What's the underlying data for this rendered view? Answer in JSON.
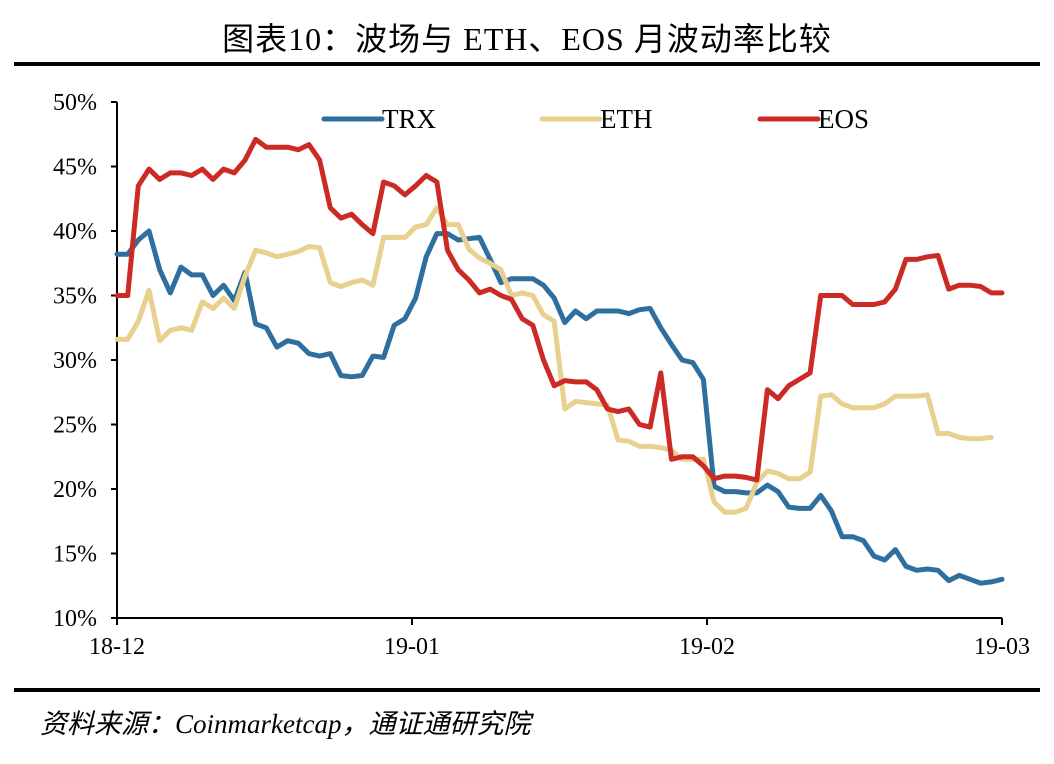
{
  "title": "图表10：波场与 ETH、EOS 月波动率比较",
  "source": "资料来源：Coinmarketcap，通证通研究院",
  "chart_data": {
    "type": "line",
    "title": "图表10：波场与 ETH、EOS 月波动率比较",
    "xlabel": "",
    "ylabel": "",
    "x_ticks": [
      "18-12",
      "19-01",
      "19-02",
      "19-03"
    ],
    "y_ticks": [
      "10%",
      "15%",
      "20%",
      "25%",
      "30%",
      "35%",
      "40%",
      "45%",
      "50%"
    ],
    "ylim": [
      10,
      50
    ],
    "y_unit": "%",
    "grid": false,
    "legend_position": "top",
    "series": [
      {
        "name": "TRX",
        "color": "#2f6f9f",
        "points": [
          [
            0,
            38.2
          ],
          [
            1,
            38.2
          ],
          [
            2,
            39.3
          ],
          [
            3,
            40.0
          ],
          [
            4,
            37.0
          ],
          [
            5,
            35.2
          ],
          [
            6,
            37.2
          ],
          [
            7,
            36.6
          ],
          [
            8,
            36.6
          ],
          [
            9,
            35.0
          ],
          [
            10,
            35.8
          ],
          [
            11,
            34.6
          ],
          [
            12,
            36.8
          ],
          [
            13,
            32.8
          ],
          [
            14,
            32.5
          ],
          [
            15,
            31.0
          ],
          [
            16,
            31.5
          ],
          [
            17,
            31.3
          ],
          [
            18,
            30.5
          ],
          [
            19,
            30.3
          ],
          [
            20,
            30.5
          ],
          [
            21,
            28.8
          ],
          [
            22,
            28.7
          ],
          [
            23,
            28.8
          ],
          [
            24,
            30.3
          ],
          [
            25,
            30.2
          ],
          [
            26,
            32.7
          ],
          [
            27,
            33.2
          ],
          [
            28,
            34.8
          ],
          [
            29,
            38.0
          ],
          [
            30,
            39.8
          ],
          [
            31,
            39.8
          ],
          [
            32,
            39.3
          ],
          [
            33,
            39.4
          ],
          [
            34,
            39.5
          ],
          [
            35,
            37.8
          ],
          [
            36,
            36.0
          ],
          [
            37,
            36.3
          ],
          [
            38,
            36.3
          ],
          [
            39,
            36.3
          ],
          [
            40,
            35.8
          ],
          [
            41,
            34.8
          ],
          [
            42,
            32.9
          ],
          [
            43,
            33.8
          ],
          [
            44,
            33.2
          ],
          [
            45,
            33.8
          ],
          [
            46,
            33.8
          ],
          [
            47,
            33.8
          ],
          [
            48,
            33.6
          ],
          [
            49,
            33.9
          ],
          [
            50,
            34.0
          ],
          [
            51,
            32.5
          ],
          [
            52,
            31.2
          ],
          [
            53,
            30.0
          ],
          [
            54,
            29.8
          ],
          [
            55,
            28.5
          ],
          [
            56,
            20.2
          ],
          [
            57,
            19.8
          ],
          [
            58,
            19.8
          ],
          [
            59,
            19.7
          ],
          [
            60,
            19.7
          ],
          [
            61,
            20.3
          ],
          [
            62,
            19.8
          ],
          [
            63,
            18.6
          ],
          [
            64,
            18.5
          ],
          [
            65,
            18.5
          ],
          [
            66,
            19.5
          ],
          [
            67,
            18.3
          ],
          [
            68,
            16.3
          ],
          [
            69,
            16.3
          ],
          [
            70,
            16.0
          ],
          [
            71,
            14.8
          ],
          [
            72,
            14.5
          ],
          [
            73,
            15.3
          ],
          [
            74,
            14.0
          ],
          [
            75,
            13.7
          ],
          [
            76,
            13.8
          ],
          [
            77,
            13.7
          ],
          [
            78,
            12.9
          ],
          [
            79,
            13.3
          ],
          [
            80,
            13.0
          ],
          [
            81,
            12.7
          ],
          [
            82,
            12.8
          ],
          [
            83,
            13.0
          ]
        ]
      },
      {
        "name": "ETH",
        "color": "#e8d08f",
        "points": [
          [
            0,
            31.6
          ],
          [
            1,
            31.6
          ],
          [
            2,
            33.0
          ],
          [
            3,
            35.4
          ],
          [
            4,
            31.5
          ],
          [
            5,
            32.3
          ],
          [
            6,
            32.5
          ],
          [
            7,
            32.3
          ],
          [
            8,
            34.5
          ],
          [
            9,
            34.0
          ],
          [
            10,
            34.8
          ],
          [
            11,
            34.0
          ],
          [
            12,
            36.5
          ],
          [
            13,
            38.5
          ],
          [
            14,
            38.3
          ],
          [
            15,
            38.0
          ],
          [
            16,
            38.2
          ],
          [
            17,
            38.4
          ],
          [
            18,
            38.8
          ],
          [
            19,
            38.7
          ],
          [
            20,
            36.0
          ],
          [
            21,
            35.7
          ],
          [
            22,
            36.0
          ],
          [
            23,
            36.2
          ],
          [
            24,
            35.8
          ],
          [
            25,
            39.5
          ],
          [
            26,
            39.5
          ],
          [
            27,
            39.5
          ],
          [
            28,
            40.3
          ],
          [
            29,
            40.5
          ],
          [
            30,
            41.8
          ],
          [
            31,
            40.5
          ],
          [
            32,
            40.5
          ],
          [
            33,
            38.6
          ],
          [
            34,
            37.9
          ],
          [
            35,
            37.5
          ],
          [
            36,
            37.0
          ],
          [
            37,
            35.0
          ],
          [
            38,
            35.2
          ],
          [
            39,
            35.0
          ],
          [
            40,
            33.5
          ],
          [
            41,
            33.0
          ],
          [
            42,
            26.2
          ],
          [
            43,
            26.8
          ],
          [
            44,
            26.7
          ],
          [
            45,
            26.6
          ],
          [
            46,
            26.5
          ],
          [
            47,
            23.8
          ],
          [
            48,
            23.7
          ],
          [
            49,
            23.3
          ],
          [
            50,
            23.3
          ],
          [
            51,
            23.2
          ],
          [
            52,
            23.0
          ],
          [
            53,
            22.3
          ],
          [
            54,
            22.3
          ],
          [
            55,
            22.3
          ],
          [
            56,
            19.0
          ],
          [
            57,
            18.2
          ],
          [
            58,
            18.2
          ],
          [
            59,
            18.5
          ],
          [
            60,
            20.5
          ],
          [
            61,
            21.4
          ],
          [
            62,
            21.2
          ],
          [
            63,
            20.8
          ],
          [
            64,
            20.8
          ],
          [
            65,
            21.3
          ],
          [
            66,
            27.2
          ],
          [
            67,
            27.3
          ],
          [
            68,
            26.6
          ],
          [
            69,
            26.3
          ],
          [
            70,
            26.3
          ],
          [
            71,
            26.3
          ],
          [
            72,
            26.6
          ],
          [
            73,
            27.2
          ],
          [
            74,
            27.2
          ],
          [
            75,
            27.2
          ],
          [
            76,
            27.3
          ],
          [
            77,
            24.3
          ],
          [
            78,
            24.3
          ],
          [
            79,
            24.0
          ],
          [
            80,
            23.9
          ],
          [
            81,
            23.9
          ],
          [
            82,
            24.0
          ]
        ]
      },
      {
        "name": "EOS",
        "color": "#cc2a25",
        "points": [
          [
            0,
            35.0
          ],
          [
            1,
            35.0
          ],
          [
            2,
            43.5
          ],
          [
            3,
            44.8
          ],
          [
            4,
            44.0
          ],
          [
            5,
            44.5
          ],
          [
            6,
            44.5
          ],
          [
            7,
            44.3
          ],
          [
            8,
            44.8
          ],
          [
            9,
            44.0
          ],
          [
            10,
            44.8
          ],
          [
            11,
            44.5
          ],
          [
            12,
            45.5
          ],
          [
            13,
            47.1
          ],
          [
            14,
            46.5
          ],
          [
            15,
            46.5
          ],
          [
            16,
            46.5
          ],
          [
            17,
            46.3
          ],
          [
            18,
            46.7
          ],
          [
            19,
            45.5
          ],
          [
            20,
            41.8
          ],
          [
            21,
            41.0
          ],
          [
            22,
            41.3
          ],
          [
            23,
            40.5
          ],
          [
            24,
            39.8
          ],
          [
            25,
            43.8
          ],
          [
            26,
            43.5
          ],
          [
            27,
            42.8
          ],
          [
            28,
            43.5
          ],
          [
            29,
            44.3
          ],
          [
            30,
            43.8
          ],
          [
            31,
            38.5
          ],
          [
            32,
            37.0
          ],
          [
            33,
            36.2
          ],
          [
            34,
            35.2
          ],
          [
            35,
            35.5
          ],
          [
            36,
            35.0
          ],
          [
            37,
            34.7
          ],
          [
            38,
            33.2
          ],
          [
            39,
            32.7
          ],
          [
            40,
            30.0
          ],
          [
            41,
            28.0
          ],
          [
            42,
            28.4
          ],
          [
            43,
            28.3
          ],
          [
            44,
            28.3
          ],
          [
            45,
            27.7
          ],
          [
            46,
            26.2
          ],
          [
            47,
            26.0
          ],
          [
            48,
            26.2
          ],
          [
            49,
            25.0
          ],
          [
            50,
            24.8
          ],
          [
            51,
            29.0
          ],
          [
            52,
            22.3
          ],
          [
            53,
            22.5
          ],
          [
            54,
            22.5
          ],
          [
            55,
            21.8
          ],
          [
            56,
            20.8
          ],
          [
            57,
            21.0
          ],
          [
            58,
            21.0
          ],
          [
            59,
            20.9
          ],
          [
            60,
            20.7
          ],
          [
            61,
            27.7
          ],
          [
            62,
            27.0
          ],
          [
            63,
            28.0
          ],
          [
            64,
            28.5
          ],
          [
            65,
            29.0
          ],
          [
            66,
            35.0
          ],
          [
            67,
            35.0
          ],
          [
            68,
            35.0
          ],
          [
            69,
            34.3
          ],
          [
            70,
            34.3
          ],
          [
            71,
            34.3
          ],
          [
            72,
            34.5
          ],
          [
            73,
            35.5
          ],
          [
            74,
            37.8
          ],
          [
            75,
            37.8
          ],
          [
            76,
            38.0
          ],
          [
            77,
            38.1
          ],
          [
            78,
            35.5
          ],
          [
            79,
            35.8
          ],
          [
            80,
            35.8
          ],
          [
            81,
            35.7
          ],
          [
            82,
            35.2
          ],
          [
            83,
            35.2
          ]
        ]
      }
    ],
    "x_domain": [
      0,
      83
    ]
  }
}
